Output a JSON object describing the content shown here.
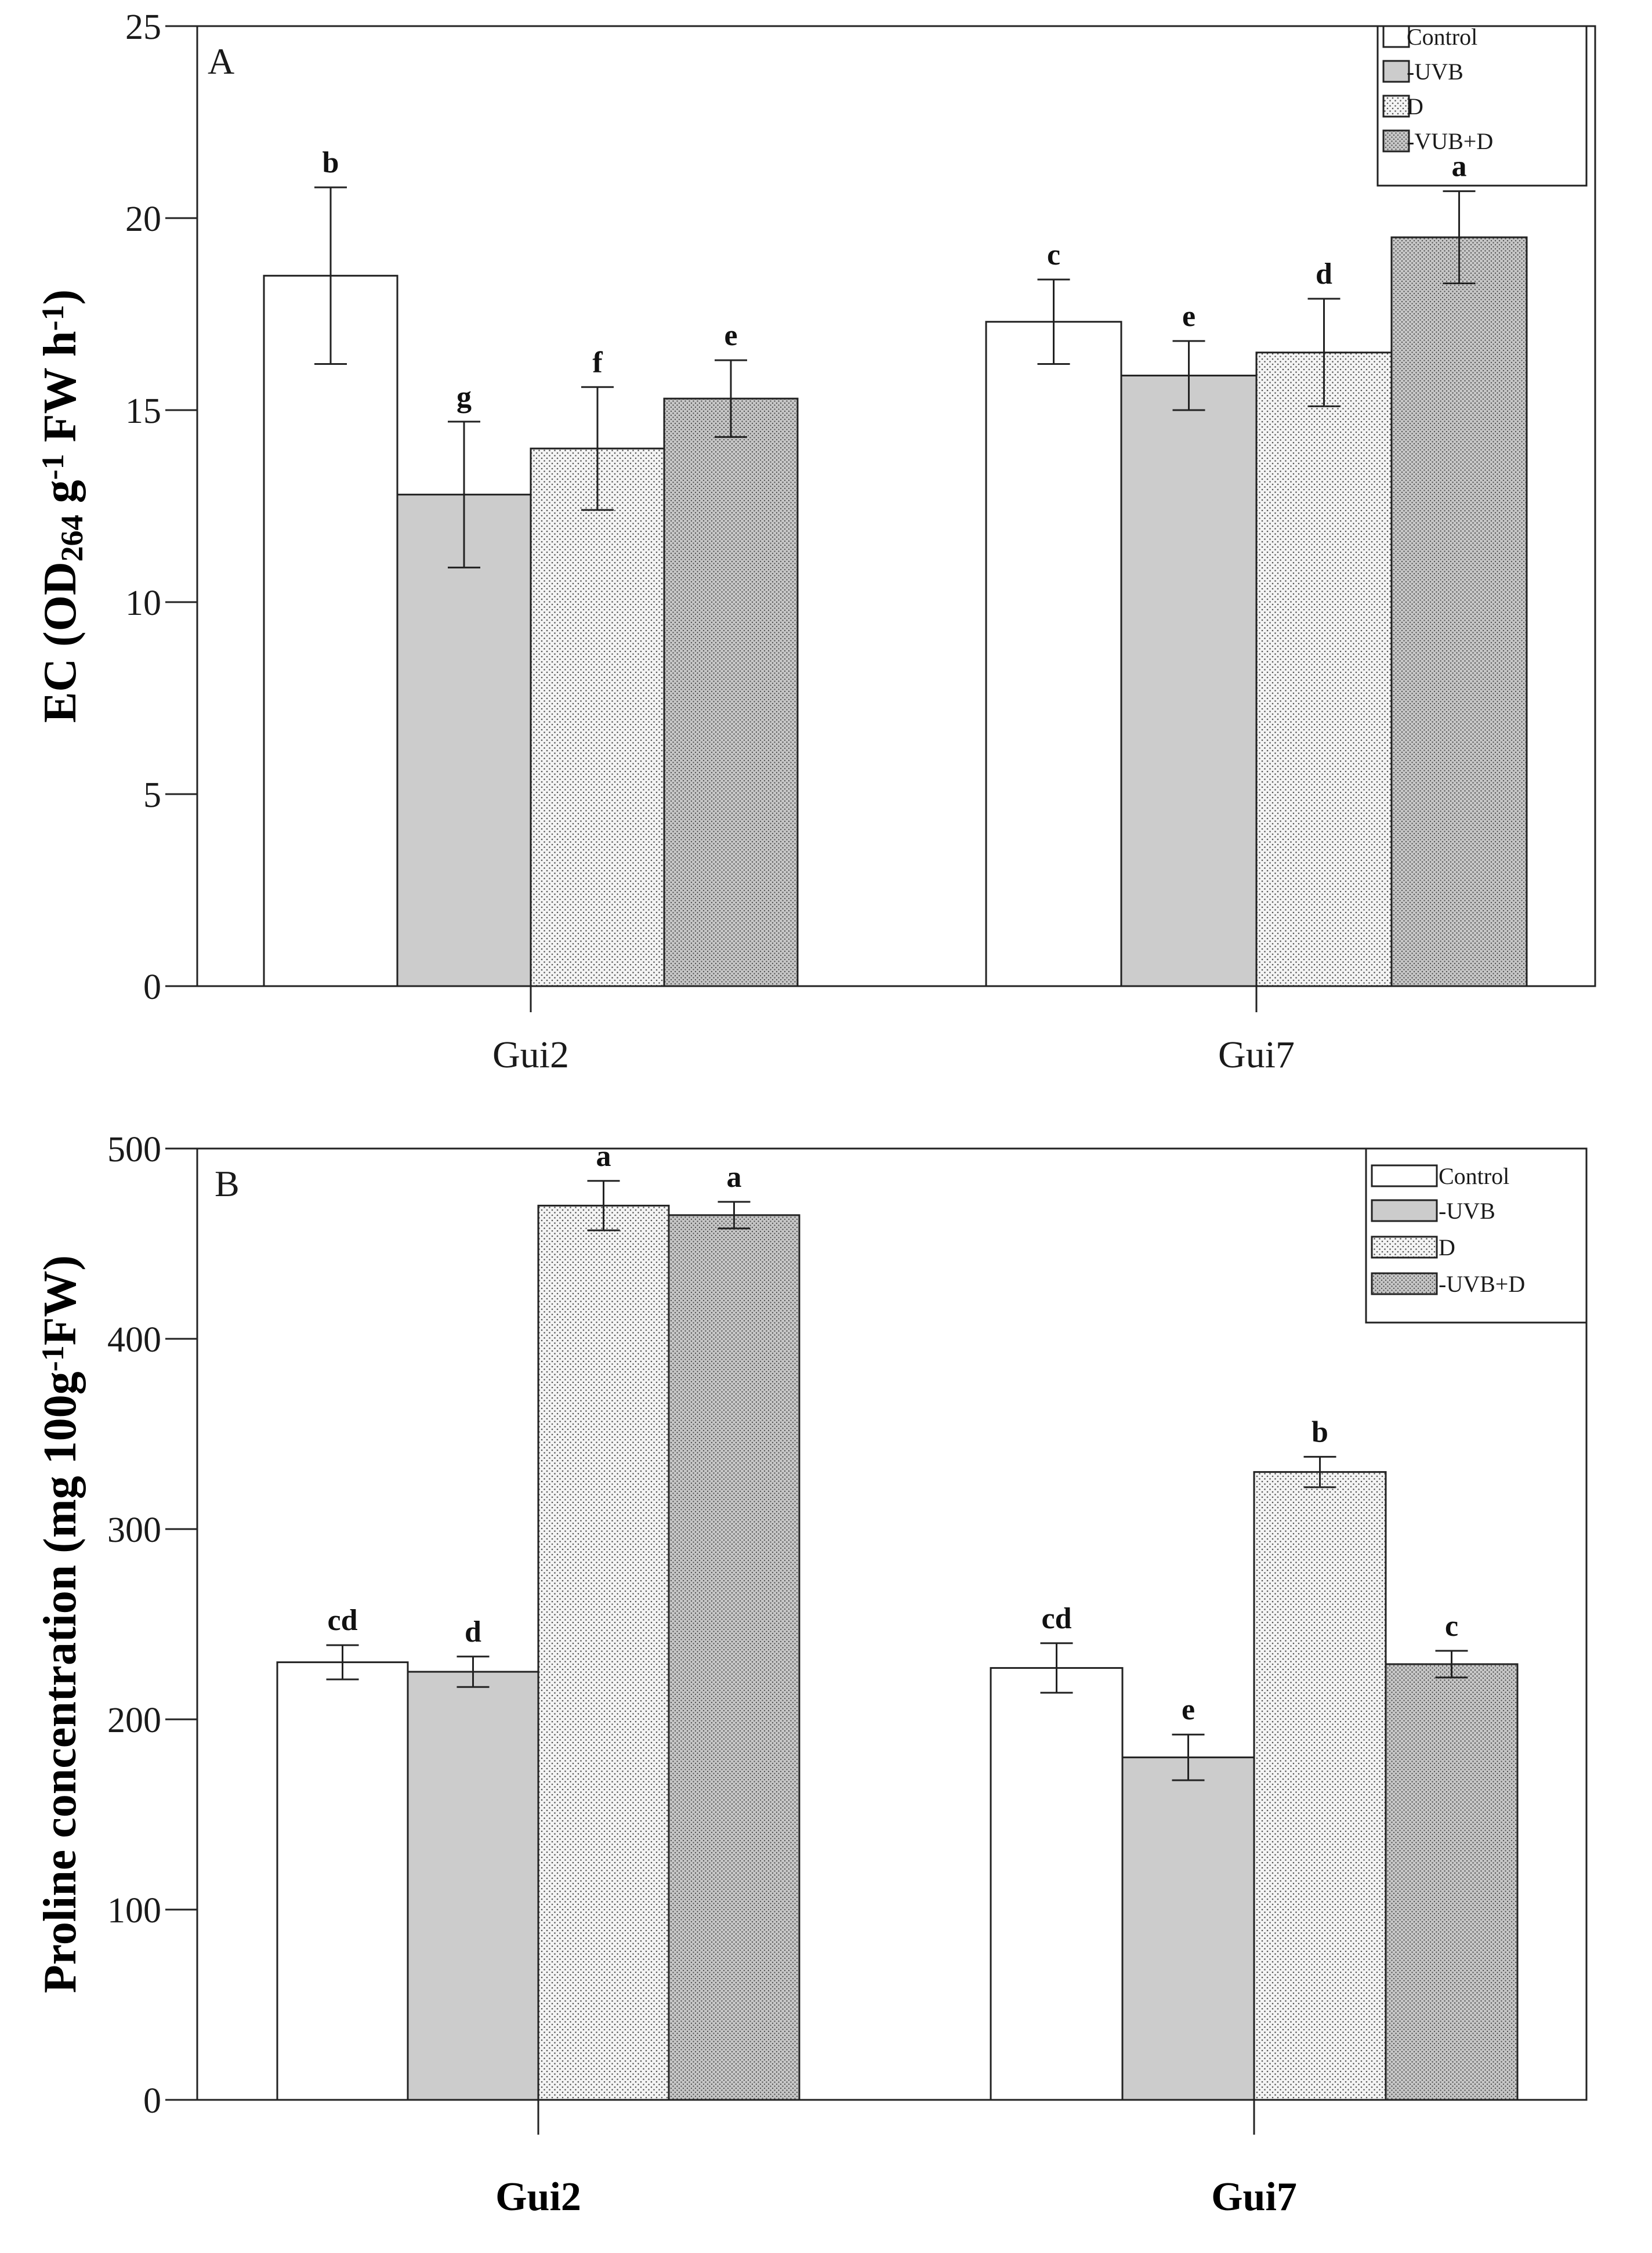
{
  "patterns": {
    "white": "#ffffff",
    "gray": "#cccccc",
    "dots_light": "#f4f4f4",
    "dots_dark": "#c6c6c6",
    "dot_color": "#555555"
  },
  "chart_data": [
    {
      "type": "bar",
      "panel_label": "A",
      "ylabel_parts": [
        "EC (OD",
        "264",
        " g",
        "-1",
        " FW h",
        "-1",
        ")"
      ],
      "ylim": [
        0,
        25
      ],
      "yticks": [
        "0",
        "5",
        "10",
        "15",
        "20",
        "25"
      ],
      "categories": [
        "Gui2",
        "Gui7"
      ],
      "categories_bold": false,
      "legend": [
        "Control",
        "-UVB",
        "D",
        "-VUB+D"
      ],
      "series": [
        {
          "name": "Control",
          "values": [
            18.5,
            17.3
          ],
          "err": [
            2.3,
            1.1
          ],
          "letters": [
            "b",
            "c"
          ],
          "fill": "white"
        },
        {
          "name": "-UVB",
          "values": [
            12.8,
            15.9
          ],
          "err": [
            1.9,
            0.9
          ],
          "letters": [
            "g",
            "e"
          ],
          "fill": "gray"
        },
        {
          "name": "D",
          "values": [
            14.0,
            16.5
          ],
          "err": [
            1.6,
            1.4
          ],
          "letters": [
            "f",
            "d"
          ],
          "fill": "dots_light"
        },
        {
          "name": "-VUB+D",
          "values": [
            15.3,
            19.5
          ],
          "err": [
            1.0,
            1.2
          ],
          "letters": [
            "e",
            "a"
          ],
          "fill": "dots_dark"
        }
      ]
    },
    {
      "type": "bar",
      "panel_label": "B",
      "ylabel_parts": [
        "Proline concentration (mg 100g",
        "-1",
        "FW)"
      ],
      "ylim": [
        0,
        500
      ],
      "yticks": [
        "0",
        "100",
        "200",
        "300",
        "400",
        "500"
      ],
      "categories": [
        "Gui2",
        "Gui7"
      ],
      "categories_bold": true,
      "legend": [
        "Control",
        "-UVB",
        "D",
        "-UVB+D"
      ],
      "series": [
        {
          "name": "Control",
          "values": [
            230,
            227
          ],
          "err": [
            9,
            13
          ],
          "letters": [
            "cd",
            "cd"
          ],
          "fill": "white"
        },
        {
          "name": "-UVB",
          "values": [
            225,
            180
          ],
          "err": [
            8,
            12
          ],
          "letters": [
            "d",
            "e"
          ],
          "fill": "gray"
        },
        {
          "name": "D",
          "values": [
            470,
            330
          ],
          "err": [
            13,
            8
          ],
          "letters": [
            "a",
            "b"
          ],
          "fill": "dots_light"
        },
        {
          "name": "-UVB+D",
          "values": [
            465,
            229
          ],
          "err": [
            7,
            7
          ],
          "letters": [
            "a",
            "c"
          ],
          "fill": "dots_dark"
        }
      ]
    }
  ]
}
